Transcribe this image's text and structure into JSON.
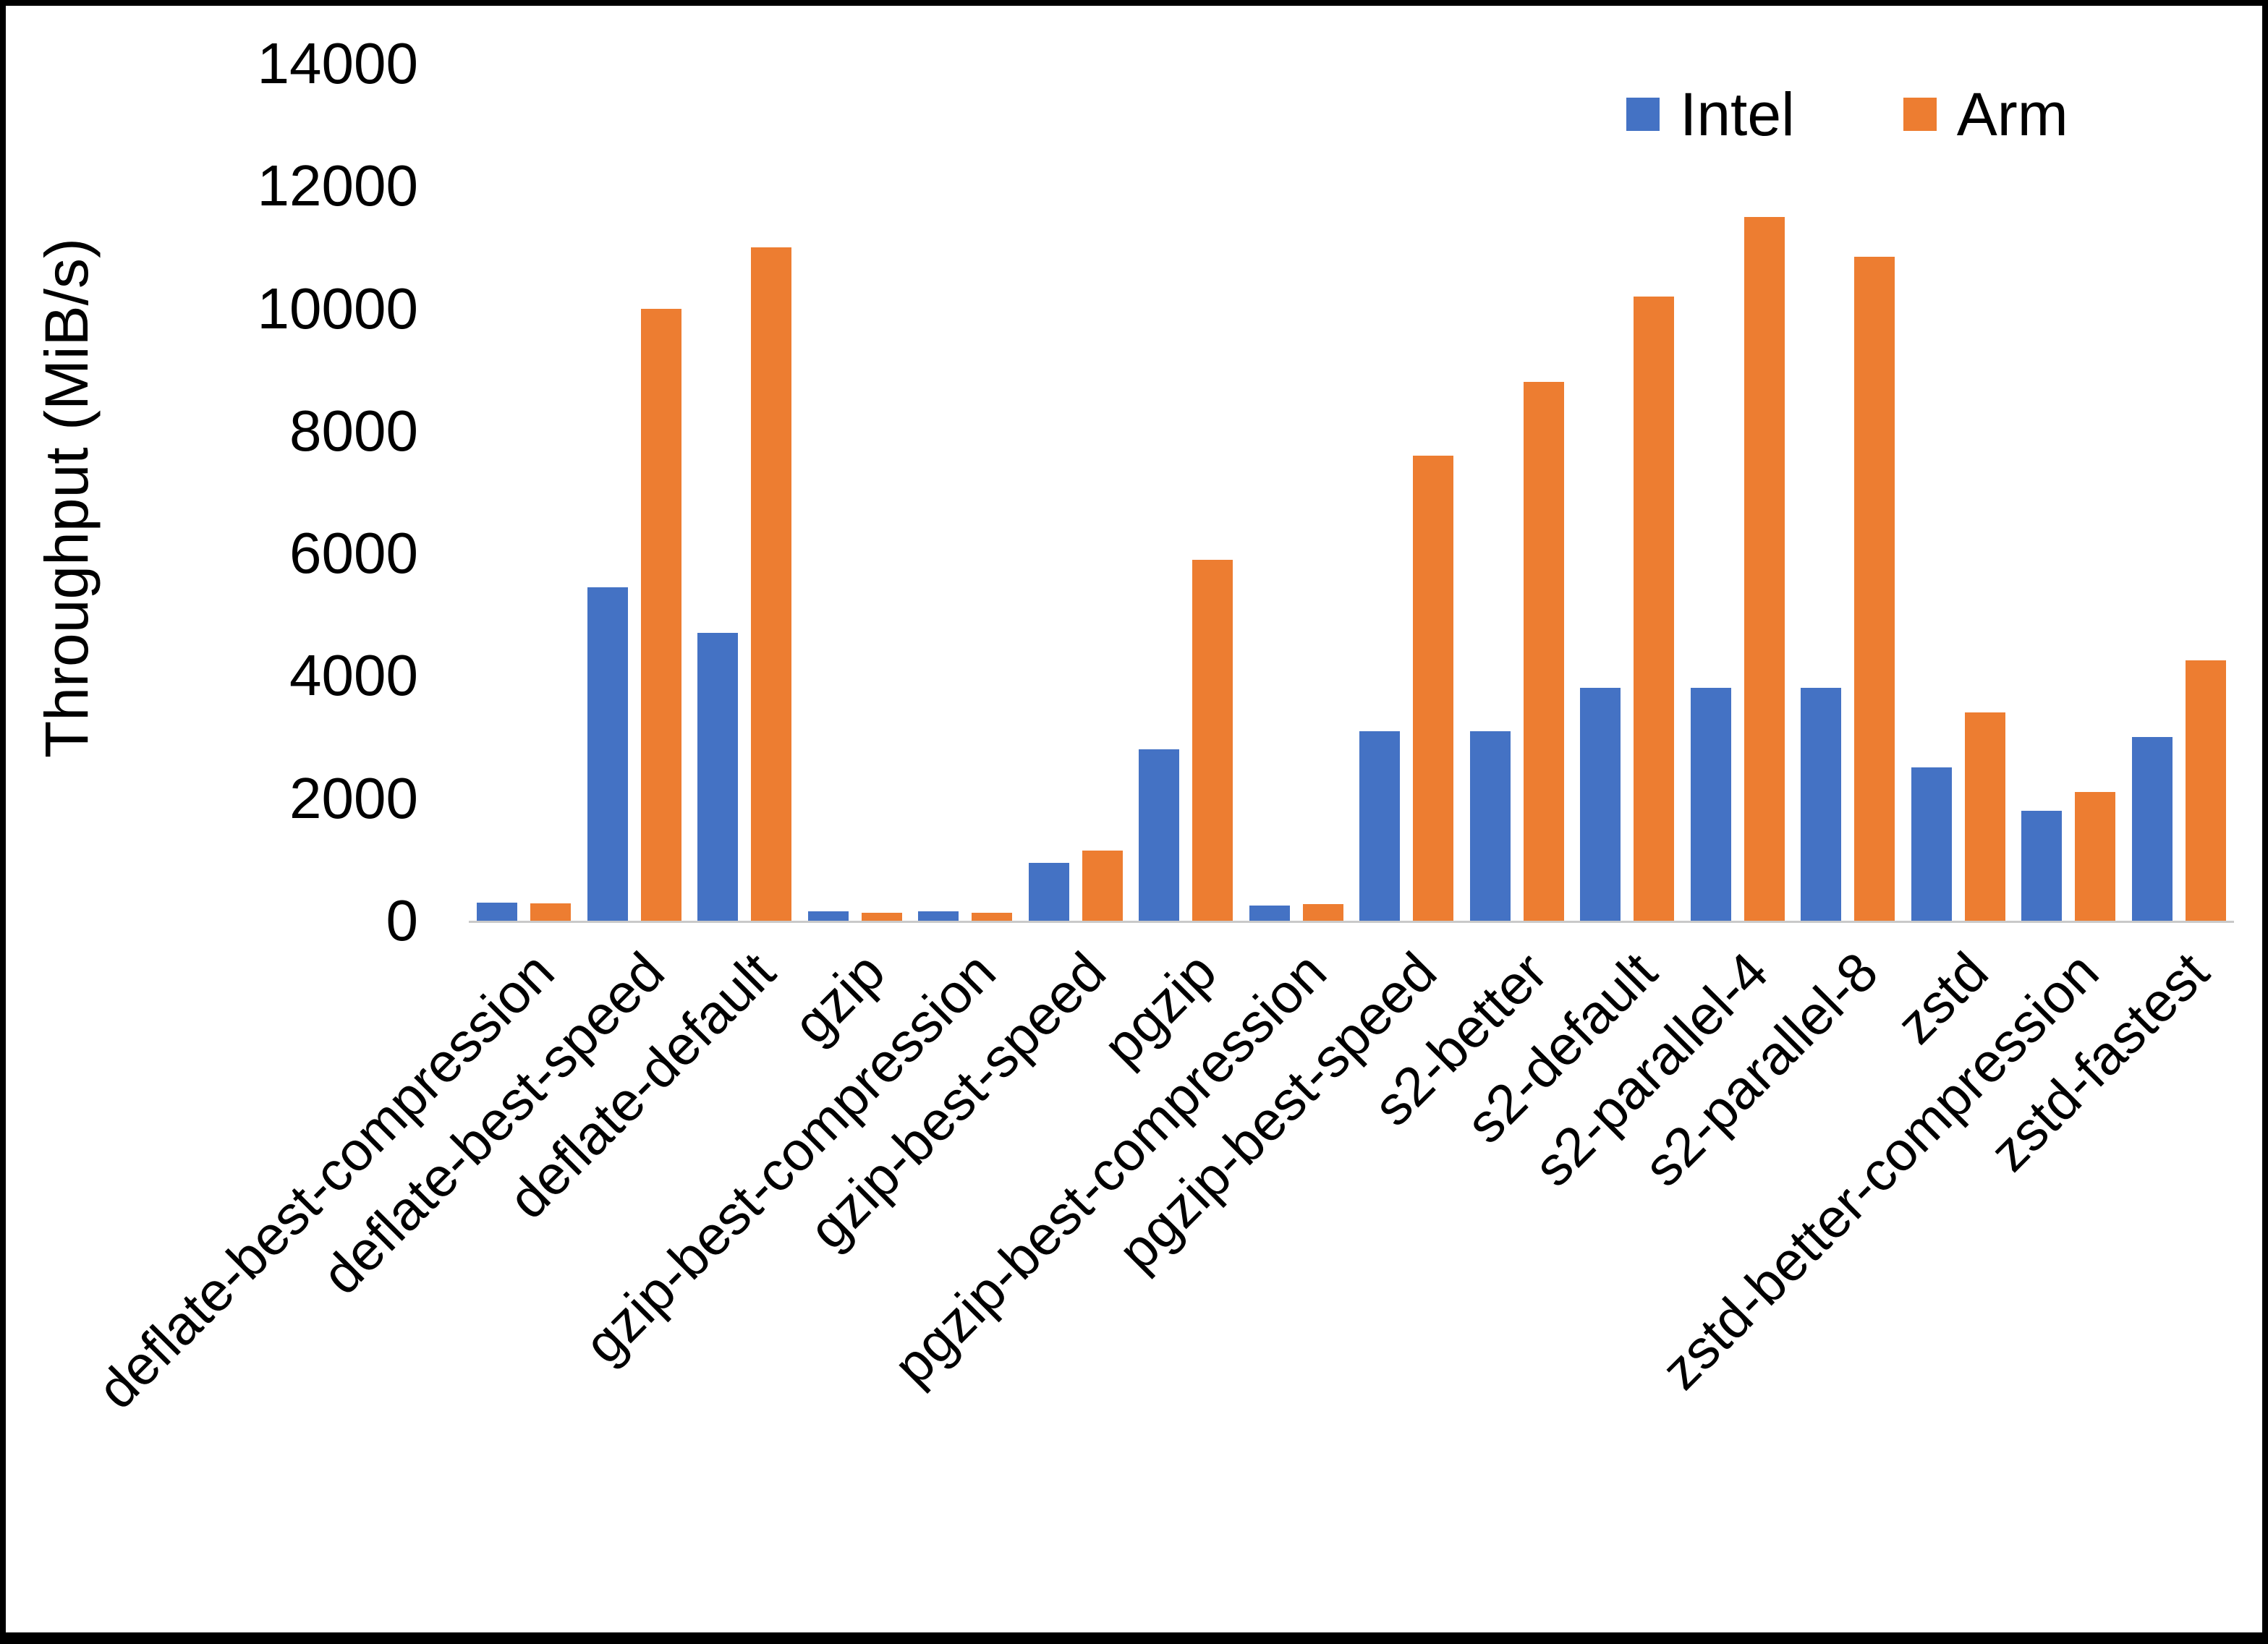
{
  "chart_data": {
    "type": "bar",
    "title": "",
    "xlabel": "",
    "ylabel": "Throughput (MiB/s)",
    "ylim": [
      0,
      14000
    ],
    "yticks": [
      0,
      2000,
      4000,
      6000,
      8000,
      10000,
      12000,
      14000
    ],
    "grid": false,
    "legend_position": "top-right",
    "categories": [
      "deflate-best-compression",
      "deflate-best-speed",
      "deflate-default",
      "gzip",
      "gzip-best-compression",
      "gzip-best-speed",
      "pgzip",
      "pgzip-best-compression",
      "pgzip-best-speed",
      "s2-better",
      "s2-default",
      "s2-parallel-4",
      "s2-parallel-8",
      "zstd",
      "zstd-better-compression",
      "zstd-fastest"
    ],
    "series": [
      {
        "name": "Intel",
        "color": "#4472C4",
        "values": [
          300,
          5450,
          4700,
          150,
          150,
          950,
          2800,
          250,
          3100,
          3100,
          3800,
          3800,
          3800,
          2500,
          1800,
          3000
        ]
      },
      {
        "name": "Arm",
        "color": "#ED7D31",
        "values": [
          280,
          10000,
          11000,
          130,
          130,
          1150,
          5900,
          270,
          7600,
          8800,
          10200,
          11500,
          10850,
          3400,
          2100,
          4250
        ]
      }
    ]
  }
}
